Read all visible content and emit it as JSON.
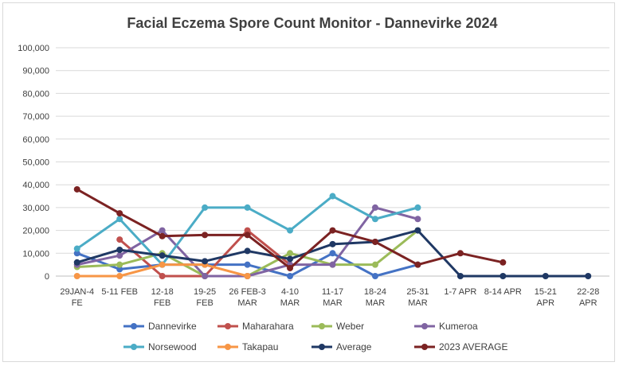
{
  "chart_data": {
    "type": "line",
    "title": "Facial Eczema Spore Count Monitor - Dannevirke 2024",
    "xlabel": "",
    "ylabel": "",
    "ylim": [
      0,
      100000
    ],
    "yticks": [
      "0",
      "10,000",
      "20,000",
      "30,000",
      "40,000",
      "50,000",
      "60,000",
      "70,000",
      "80,000",
      "90,000",
      "100,000"
    ],
    "ytick_values": [
      0,
      10000,
      20000,
      30000,
      40000,
      50000,
      60000,
      70000,
      80000,
      90000,
      100000
    ],
    "categories": [
      [
        "29JAN-4",
        "FE"
      ],
      [
        "5-11 FEB"
      ],
      [
        "12-18",
        "FEB"
      ],
      [
        "19-25",
        "FEB"
      ],
      [
        "26 FEB-3",
        "MAR"
      ],
      [
        "4-10",
        "MAR"
      ],
      [
        "11-17",
        "MAR"
      ],
      [
        "18-24",
        "MAR"
      ],
      [
        "25-31",
        "MAR"
      ],
      [
        "1-7 APR"
      ],
      [
        "8-14 APR"
      ],
      [
        "15-21",
        "APR"
      ],
      [
        "22-28",
        "APR"
      ]
    ],
    "grid": true,
    "legend_position": "bottom",
    "series": [
      {
        "name": "Dannevirke",
        "color": "#4472C4",
        "values": [
          10000,
          3000,
          5000,
          5000,
          5000,
          0,
          10000,
          0,
          5000,
          null,
          null,
          null,
          null
        ]
      },
      {
        "name": "Maharahara",
        "color": "#C0504D",
        "values": [
          null,
          16000,
          0,
          0,
          20000,
          5000,
          null,
          null,
          null,
          null,
          null,
          null,
          null
        ]
      },
      {
        "name": "Weber",
        "color": "#9BBB59",
        "values": [
          4000,
          5000,
          10000,
          0,
          0,
          10000,
          5000,
          5000,
          20000,
          null,
          null,
          null,
          null
        ]
      },
      {
        "name": "Kumeroa",
        "color": "#8064A2",
        "values": [
          5000,
          9000,
          20000,
          0,
          0,
          5000,
          5000,
          30000,
          25000,
          null,
          null,
          null,
          null
        ]
      },
      {
        "name": "Norsewood",
        "color": "#4BACC6",
        "values": [
          12000,
          25000,
          5000,
          30000,
          30000,
          20000,
          35000,
          25000,
          30000,
          null,
          null,
          null,
          null
        ]
      },
      {
        "name": "Takapau",
        "color": "#F79646",
        "values": [
          0,
          0,
          5000,
          5000,
          0,
          null,
          null,
          null,
          null,
          null,
          null,
          null,
          null
        ]
      },
      {
        "name": "Average",
        "color": "#1F3864",
        "values": [
          6000,
          11500,
          9000,
          6500,
          11000,
          7500,
          14000,
          15000,
          20000,
          0,
          0,
          0,
          0
        ]
      },
      {
        "name": "2023 AVERAGE",
        "color": "#7B2222",
        "values": [
          38000,
          27500,
          17500,
          18000,
          18000,
          3500,
          20000,
          15000,
          5000,
          10000,
          6000,
          null,
          null
        ]
      }
    ]
  }
}
